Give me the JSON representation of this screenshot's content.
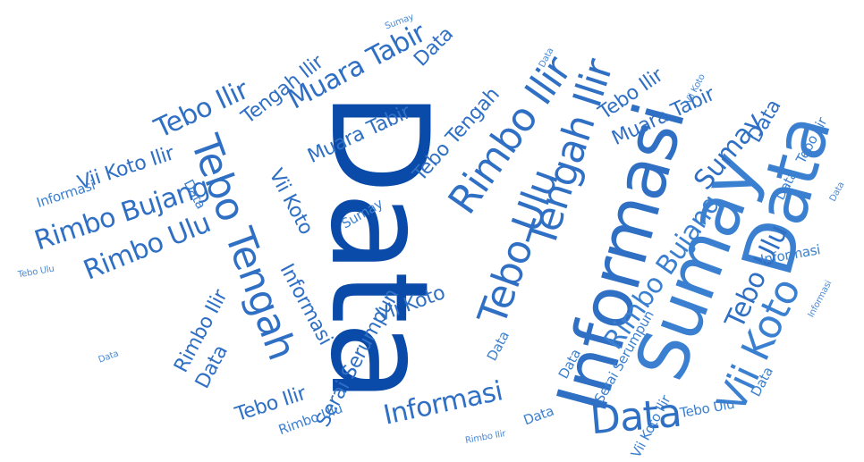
{
  "colors": {
    "background": "#ffffff",
    "dark": "#0a4aa8",
    "mid": "#2f6fc4",
    "light": "#3b80d0"
  },
  "words": {
    "data": "Data",
    "informasi": "Informasi",
    "sumay": "Sumay",
    "tebo_tengah": "Tebo Tengah",
    "tengah_ilir": "Tengah Ilir",
    "rimbo_ilir": "Rimbo Ilir",
    "tebo_ulu": "Tebo Ulu",
    "rimbo_ulu": "Rimbo Ulu",
    "rimbo_bujang": "Rimbo Bujang",
    "vii_koto": "Vii Koto",
    "vii_koto_ilir": "Vii Koto Ilir",
    "tebo_ilir": "Tebo Ilir",
    "muara_tabir": "Muara Tabir",
    "serai_serumpun": "Serai Serumpun"
  }
}
